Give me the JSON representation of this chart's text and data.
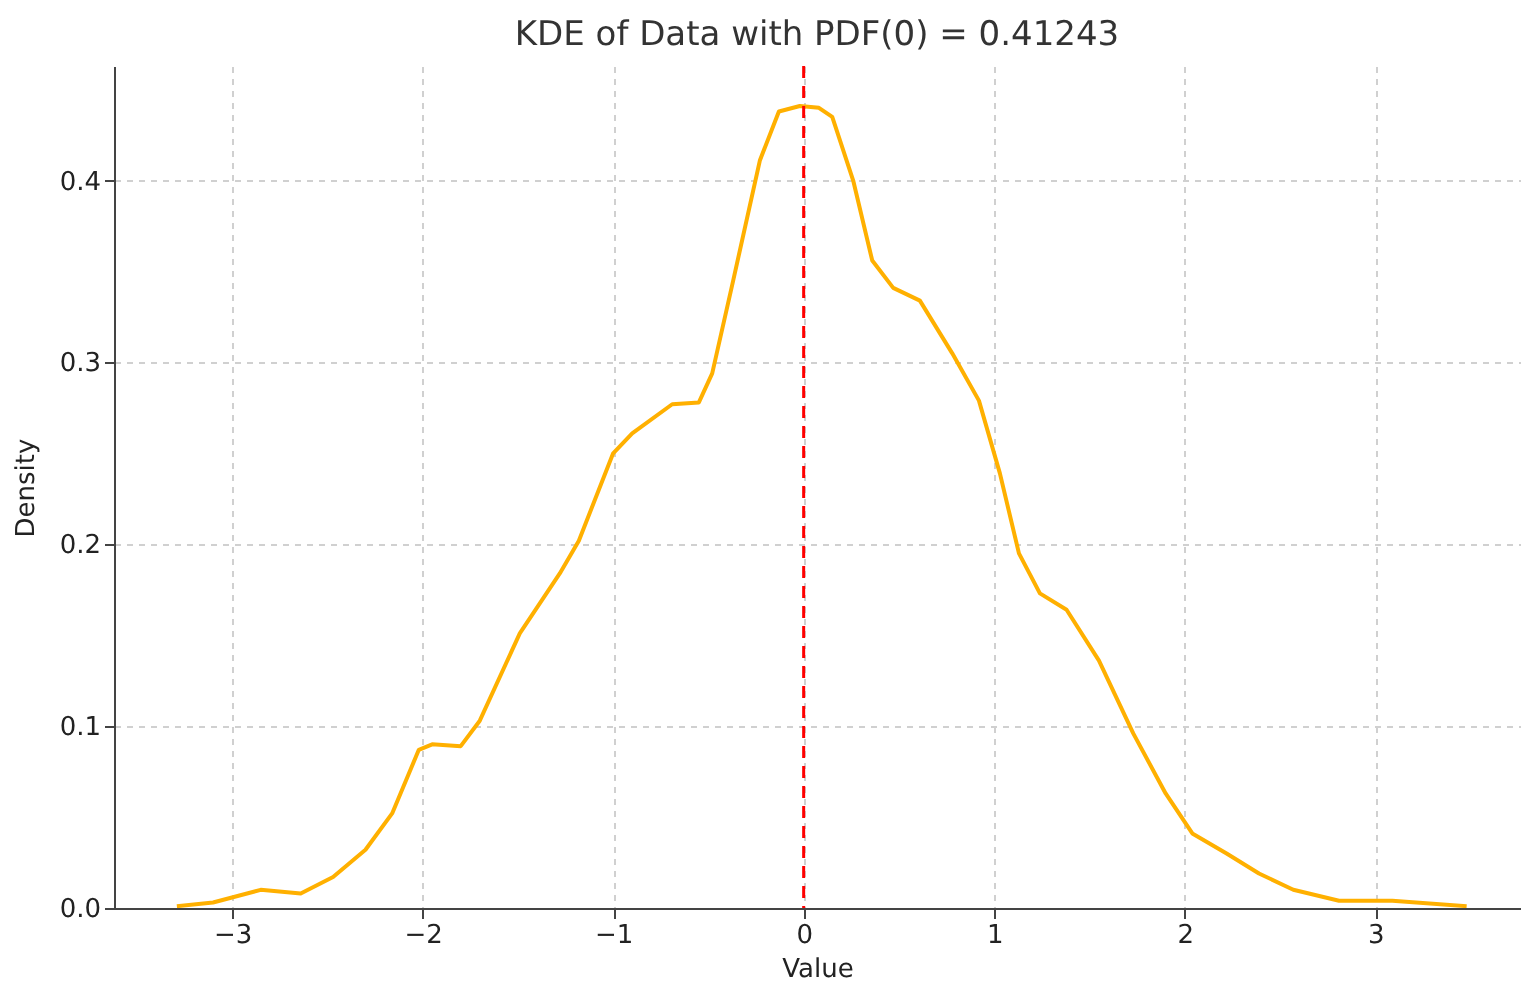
{
  "chart_data": {
    "type": "line",
    "title": "KDE of Data with PDF(0) = 0.41243",
    "xlabel": "Value",
    "ylabel": "Density",
    "x": [
      -3.29,
      -3.1,
      -2.85,
      -2.64,
      -2.47,
      -2.3,
      -2.16,
      -2.02,
      -1.95,
      -1.8,
      -1.7,
      -1.49,
      -1.28,
      -1.18,
      -1.0,
      -0.9,
      -0.69,
      -0.55,
      -0.48,
      -0.37,
      -0.23,
      -0.13,
      -0.02,
      0.08,
      0.15,
      0.26,
      0.36,
      0.47,
      0.61,
      0.78,
      0.92,
      1.03,
      1.13,
      1.24,
      1.38,
      1.55,
      1.73,
      1.9,
      2.04,
      2.22,
      2.39,
      2.57,
      2.81,
      3.09,
      3.48
    ],
    "series": [
      {
        "color": "#ffb000",
        "values": [
          0.001,
          0.003,
          0.01,
          0.008,
          0.017,
          0.032,
          0.052,
          0.087,
          0.09,
          0.089,
          0.103,
          0.151,
          0.184,
          0.202,
          0.25,
          0.261,
          0.277,
          0.278,
          0.294,
          0.345,
          0.411,
          0.438,
          0.441,
          0.44,
          0.435,
          0.4,
          0.356,
          0.341,
          0.334,
          0.305,
          0.279,
          0.239,
          0.195,
          0.173,
          0.164,
          0.136,
          0.096,
          0.063,
          0.041,
          0.03,
          0.019,
          0.01,
          0.004,
          0.004,
          0.001
        ]
      }
    ],
    "xlim": [
      -3.62,
      3.76
    ],
    "ylim": [
      0,
      0.463
    ],
    "xticks": [
      {
        "value": -3,
        "label": "−3"
      },
      {
        "value": -2,
        "label": "−2"
      },
      {
        "value": -1,
        "label": "−1"
      },
      0,
      1,
      2,
      3
    ],
    "yticks": [
      {
        "value": 0,
        "label": "0.0"
      },
      0.1,
      0.2,
      0.3,
      0.4
    ],
    "ref_lines": [
      {
        "axis": "x",
        "value": 0,
        "color": "#ff0000",
        "line_style": "dashed"
      }
    ],
    "grid": true,
    "line_style": "solid",
    "marker": "none"
  }
}
